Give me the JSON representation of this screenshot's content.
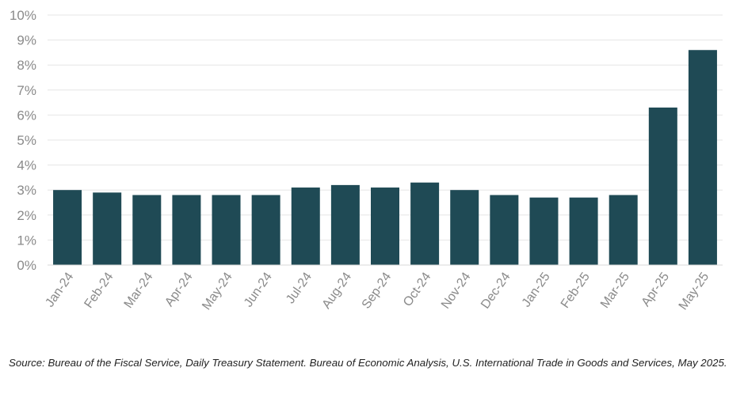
{
  "chart_data": {
    "type": "bar",
    "categories": [
      "Jan-24",
      "Feb-24",
      "Mar-24",
      "Apr-24",
      "May-24",
      "Jun-24",
      "Jul-24",
      "Aug-24",
      "Sep-24",
      "Oct-24",
      "Nov-24",
      "Dec-24",
      "Jan-25",
      "Feb-25",
      "Mar-25",
      "Apr-25",
      "May-25"
    ],
    "values": [
      3.0,
      2.9,
      2.8,
      2.8,
      2.8,
      2.8,
      3.1,
      3.2,
      3.1,
      3.3,
      3.0,
      2.8,
      2.7,
      2.7,
      2.8,
      6.3,
      8.6
    ],
    "ylim": [
      0,
      10
    ],
    "yticks": [
      "0%",
      "1%",
      "2%",
      "3%",
      "4%",
      "5%",
      "6%",
      "7%",
      "8%",
      "9%",
      "10%"
    ],
    "title": "",
    "xlabel": "",
    "ylabel": "",
    "grid": true,
    "bar_color": "#1f4a55",
    "grid_color": "#e6e6e6"
  },
  "source_note": "Source: Bureau of the Fiscal Service, Daily Treasury Statement. Bureau of Economic Analysis, U.S. International Trade in Goods and Services, May 2025."
}
